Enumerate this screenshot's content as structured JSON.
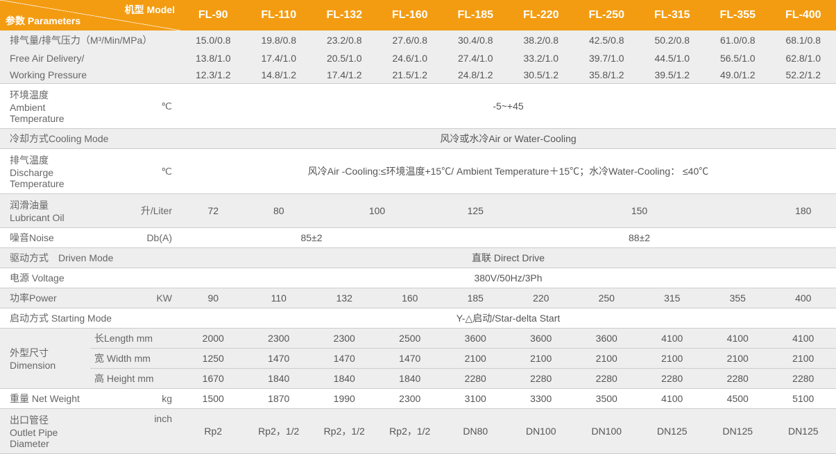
{
  "header": {
    "param_label": "参数 Parameters",
    "model_label": "机型 Model",
    "models": [
      "FL-90",
      "FL-110",
      "FL-132",
      "FL-160",
      "FL-185",
      "FL-220",
      "FL-250",
      "FL-315",
      "FL-355",
      "FL-400"
    ]
  },
  "rows": {
    "fad": {
      "label_cn": "排气量/排气压力（M³/Min/MPa）",
      "label_en1": "Free Air Delivery/",
      "label_en2": "Working Pressure",
      "r1": [
        "15.0/0.8",
        "19.8/0.8",
        "23.2/0.8",
        "27.6/0.8",
        "30.4/0.8",
        "38.2/0.8",
        "42.5/0.8",
        "50.2/0.8",
        "61.0/0.8",
        "68.1/0.8"
      ],
      "r2": [
        "13.8/1.0",
        "17.4/1.0",
        "20.5/1.0",
        "24.6/1.0",
        "27.4/1.0",
        "33.2/1.0",
        "39.7/1.0",
        "44.5/1.0",
        "56.5/1.0",
        "62.8/1.0"
      ],
      "r3": [
        "12.3/1.2",
        "14.8/1.2",
        "17.4/1.2",
        "21.5/1.2",
        "24.8/1.2",
        "30.5/1.2",
        "35.8/1.2",
        "39.5/1.2",
        "49.0/1.2",
        "52.2/1.2"
      ]
    },
    "ambient": {
      "label_cn": "环境温度",
      "label_en": "Ambient Temperature",
      "unit": "℃",
      "value": "-5~+45"
    },
    "cooling": {
      "label": "冷却方式Cooling Mode",
      "value": "风冷或水冷Air or Water-Cooling"
    },
    "discharge": {
      "label_cn": "排气温度",
      "label_en": "Discharge Temperature",
      "unit": "℃",
      "value": "风冷Air -Cooling:≤环境温度+15℃/ Ambient Temperature＋15℃；水冷Water-Cooling： ≤40℃"
    },
    "lubricant": {
      "label_cn": "润滑油量",
      "label_en": "Lubricant Oil",
      "unit": "升/Liter",
      "spans": [
        1,
        1,
        2,
        1,
        4,
        1
      ],
      "values": [
        "72",
        "80",
        "100",
        "125",
        "150",
        "180"
      ]
    },
    "noise": {
      "label": "噪音Noise",
      "unit": "Db(A)",
      "spans": [
        4,
        6
      ],
      "values": [
        "85±2",
        "88±2"
      ]
    },
    "driven": {
      "label": "驱动方式　Driven Mode",
      "value": "直联 Direct Drive"
    },
    "voltage": {
      "label": "电源  Voltage",
      "value": "380V/50Hz/3Ph"
    },
    "power": {
      "label": "功率Power",
      "unit": "KW",
      "values": [
        "90",
        "110",
        "132",
        "160",
        "185",
        "220",
        "250",
        "315",
        "355",
        "400"
      ]
    },
    "starting": {
      "label": "启动方式   Starting Mode",
      "value": "Y-△启动/Star-delta Start"
    },
    "dim": {
      "label_cn": "外型尺寸",
      "label_en": "Dimension",
      "length_label": "长Length mm",
      "length": [
        "2000",
        "2300",
        "2300",
        "2500",
        "3600",
        "3600",
        "3600",
        "4100",
        "4100",
        "4100"
      ],
      "width_label": "宽 Width  mm",
      "width": [
        "1250",
        "1470",
        "1470",
        "1470",
        "2100",
        "2100",
        "2100",
        "2100",
        "2100",
        "2100"
      ],
      "height_label": "高 Height mm",
      "height": [
        "1670",
        "1840",
        "1840",
        "1840",
        "2280",
        "2280",
        "2280",
        "2280",
        "2280",
        "2280"
      ]
    },
    "weight": {
      "label": "重量 Net Weight",
      "unit": "kg",
      "values": [
        "1500",
        "1870",
        "1990",
        "2300",
        "3100",
        "3300",
        "3500",
        "4100",
        "4500",
        "5100"
      ]
    },
    "outlet": {
      "label_cn": "出口管径",
      "label_en": "Outlet Pipe Diameter",
      "unit": "inch",
      "values": [
        "Rp2",
        "Rp2，1/2",
        "Rp2，1/2",
        "Rp2，1/2",
        "DN80",
        "DN100",
        "DN100",
        "DN125",
        "DN125",
        "DN125"
      ]
    }
  },
  "style": {
    "header_bg": "#f39c12",
    "header_fg": "#ffffff",
    "zebra_bg": "#eeeeee",
    "border": "#cccccc",
    "text": "#555555",
    "font_size": 14,
    "header_font_size": 16
  }
}
